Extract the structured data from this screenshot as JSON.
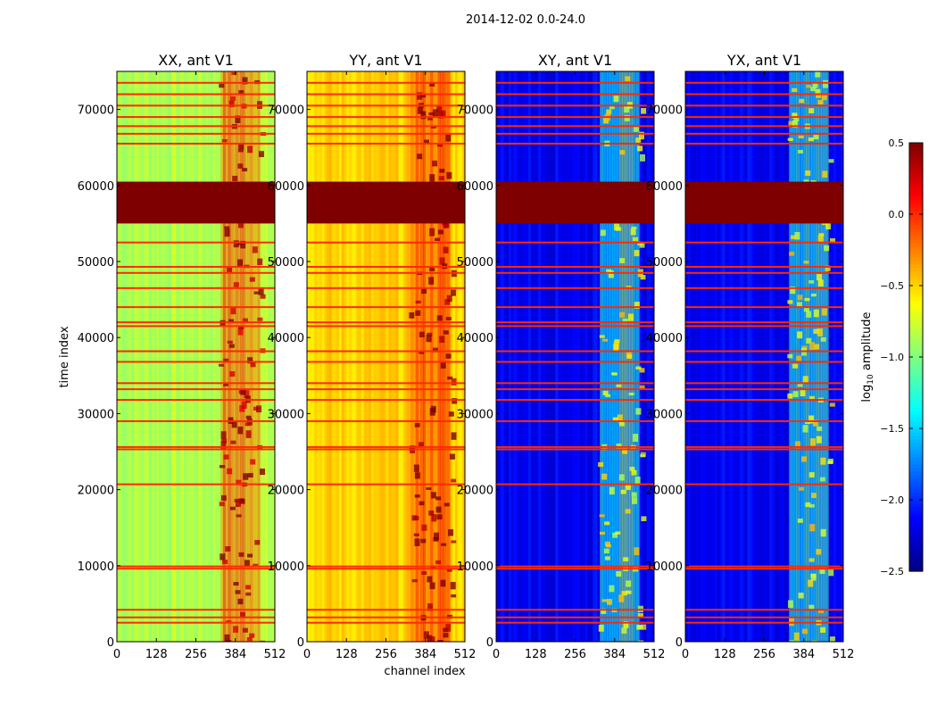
{
  "figure": {
    "suptitle": "2014-12-02 0.0-24.0",
    "xlabel": "channel index",
    "ylabel": "time index",
    "colorbar_label": "log",
    "colorbar_label_sub": "10",
    "colorbar_label_rest": " amplitude"
  },
  "chart_data": [
    {
      "type": "heatmap",
      "title": "XX, ant V1",
      "xlim": [
        0,
        512
      ],
      "ylim": [
        0,
        75000
      ],
      "xticks": [
        0,
        128,
        256,
        384,
        512
      ],
      "yticks": [
        0,
        10000,
        20000,
        30000,
        40000,
        50000,
        60000,
        70000
      ],
      "colormap": "jet",
      "background_level": -0.85,
      "right_band_level": -0.1,
      "saturated_block": {
        "t_start": 55000,
        "t_end": 60500,
        "value": 0.5
      },
      "flagged_rows": [
        2500,
        3200,
        4200,
        9600,
        9900,
        20700,
        25300,
        25600,
        29000,
        31800,
        33200,
        34000,
        36800,
        38200,
        41500,
        42000,
        44000,
        46500,
        48500,
        49300,
        52500,
        65500,
        66800,
        67800,
        69000,
        70500,
        72000,
        73500
      ],
      "bright_channel_band": [
        330,
        470
      ]
    },
    {
      "type": "heatmap",
      "title": "YY, ant V1",
      "xlim": [
        0,
        512
      ],
      "ylim": [
        0,
        75000
      ],
      "xticks": [
        0,
        128,
        256,
        384,
        512
      ],
      "yticks": [
        0,
        10000,
        20000,
        30000,
        40000,
        50000,
        60000,
        70000
      ],
      "colormap": "jet",
      "background_level": -0.5,
      "right_band_level": 0.0,
      "saturated_block": {
        "t_start": 55000,
        "t_end": 60500,
        "value": 0.5
      },
      "flagged_rows": [
        2500,
        3200,
        4200,
        9600,
        9900,
        20700,
        25300,
        25600,
        29000,
        31800,
        33200,
        34000,
        36800,
        38200,
        41500,
        42000,
        44000,
        46500,
        48500,
        49300,
        52500,
        65500,
        66800,
        67800,
        69000,
        70500,
        72000,
        73500
      ],
      "bright_channel_band": [
        330,
        470
      ]
    },
    {
      "type": "heatmap",
      "title": "XY, ant V1",
      "xlim": [
        0,
        512
      ],
      "ylim": [
        0,
        75000
      ],
      "xticks": [
        0,
        128,
        256,
        384,
        512
      ],
      "yticks": [
        0,
        10000,
        20000,
        30000,
        40000,
        50000,
        60000,
        70000
      ],
      "colormap": "jet",
      "background_level": -2.15,
      "right_band_level": -1.2,
      "saturated_block": {
        "t_start": 55000,
        "t_end": 60500,
        "value": 0.5
      },
      "flagged_rows": [
        2500,
        3200,
        4200,
        9600,
        9900,
        20700,
        25300,
        25600,
        29000,
        31800,
        33200,
        34000,
        36800,
        38200,
        41500,
        42000,
        44000,
        46500,
        48500,
        49300,
        52500,
        65500,
        66800,
        67800,
        69000,
        70500,
        72000,
        73500
      ],
      "bright_channel_band": [
        330,
        470
      ]
    },
    {
      "type": "heatmap",
      "title": "YX, ant V1",
      "xlim": [
        0,
        512
      ],
      "ylim": [
        0,
        75000
      ],
      "xticks": [
        0,
        128,
        256,
        384,
        512
      ],
      "yticks": [
        0,
        10000,
        20000,
        30000,
        40000,
        50000,
        60000,
        70000
      ],
      "colormap": "jet",
      "background_level": -2.15,
      "right_band_level": -1.2,
      "saturated_block": {
        "t_start": 55000,
        "t_end": 60500,
        "value": 0.5
      },
      "flagged_rows": [
        2500,
        3200,
        4200,
        9600,
        9900,
        20700,
        25300,
        25600,
        29000,
        31800,
        33200,
        34000,
        36800,
        38200,
        41500,
        42000,
        44000,
        46500,
        48500,
        49300,
        52500,
        65500,
        66800,
        67800,
        69000,
        70500,
        72000,
        73500
      ],
      "bright_channel_band": [
        330,
        470
      ]
    }
  ],
  "colorbar": {
    "range": [
      -2.5,
      0.5
    ],
    "ticks": [
      0.5,
      0.0,
      -0.5,
      -1.0,
      -1.5,
      -2.0,
      -2.5
    ],
    "tick_labels": [
      "0.5",
      "0.0",
      "−0.5",
      "−1.0",
      "−1.5",
      "−2.0",
      "−2.5"
    ]
  }
}
